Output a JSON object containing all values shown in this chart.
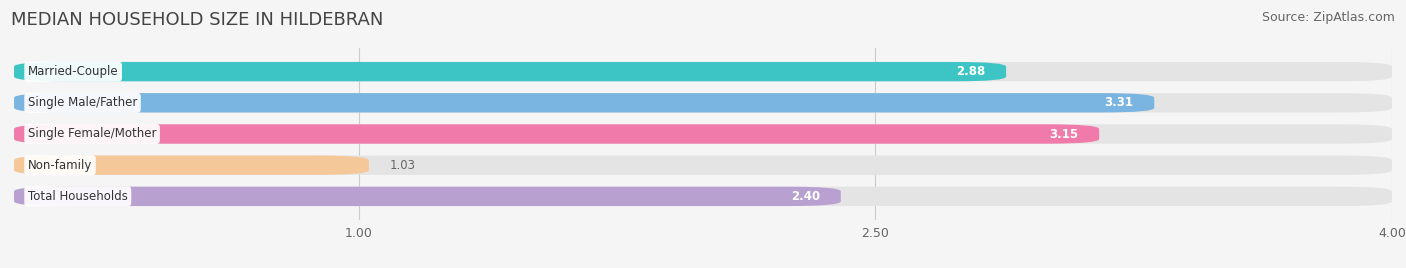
{
  "title": "MEDIAN HOUSEHOLD SIZE IN HILDEBRAN",
  "source": "Source: ZipAtlas.com",
  "categories": [
    "Married-Couple",
    "Single Male/Father",
    "Single Female/Mother",
    "Non-family",
    "Total Households"
  ],
  "values": [
    2.88,
    3.31,
    3.15,
    1.03,
    2.4
  ],
  "bar_colors": [
    "#3dc4c4",
    "#7ab4e0",
    "#f07aaa",
    "#f5c89a",
    "#b8a0d0"
  ],
  "xlim": [
    0.0,
    4.0
  ],
  "xticks": [
    1.0,
    2.5,
    4.0
  ],
  "xtick_labels": [
    "1.00",
    "2.50",
    "4.00"
  ],
  "value_label_color_inside": "#ffffff",
  "value_label_color_outside": "#666666",
  "background_color": "#f5f5f5",
  "bar_bg_color": "#e4e4e4",
  "title_fontsize": 13,
  "source_fontsize": 9,
  "label_fontsize": 8.5,
  "value_fontsize": 8.5,
  "tick_fontsize": 9,
  "title_color": "#444444"
}
